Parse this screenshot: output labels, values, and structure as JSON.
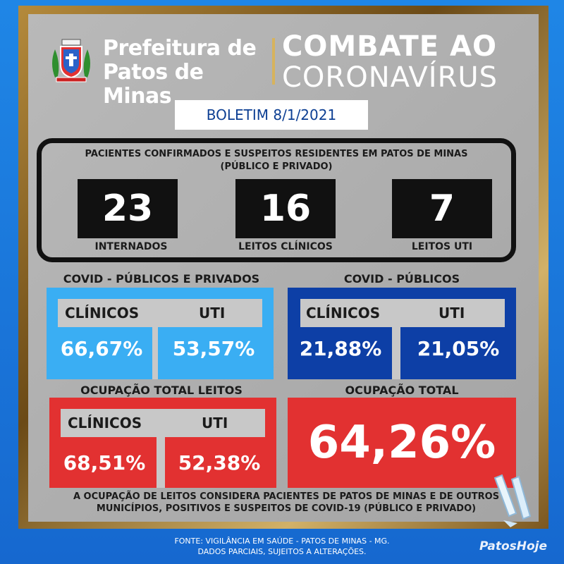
{
  "header": {
    "prefeitura_line1": "Prefeitura de",
    "prefeitura_line2": "Patos de Minas",
    "title_line1": "COMBATE AO",
    "title_line2": "CORONAVÍRUS",
    "crest_icon": "municipal-crest-icon"
  },
  "boletim": "BOLETIM 8/1/2021",
  "patients": {
    "title_line1": "PACIENTES CONFIRMADOS E SUSPEITOS RESIDENTES EM PATOS DE MINAS",
    "title_line2": "(PÚBLICO E PRIVADO)",
    "items": [
      {
        "value": "23",
        "label": "INTERNADOS"
      },
      {
        "value": "16",
        "label": "LEITOS CLÍNICOS"
      },
      {
        "value": "7",
        "label": "LEITOS UTI"
      }
    ]
  },
  "covid_public_private": {
    "title": "COVID - PÚBLICOS E PRIVADOS",
    "clinicos_label": "CLÍNICOS",
    "uti_label": "UTI",
    "clinicos_value": "66,67%",
    "uti_value": "53,57%",
    "color": "#3aaef3"
  },
  "covid_public": {
    "title": "COVID - PÚBLICOS",
    "clinicos_label": "CLÍNICOS",
    "uti_label": "UTI",
    "clinicos_value": "21,88%",
    "uti_value": "21,05%",
    "color": "#0d3fa6"
  },
  "total_beds": {
    "title": "OCUPAÇÃO TOTAL LEITOS",
    "clinicos_label": "CLÍNICOS",
    "uti_label": "UTI",
    "clinicos_value": "68,51%",
    "uti_value": "52,38%",
    "color": "#e23131"
  },
  "total": {
    "title": "OCUPAÇÃO TOTAL",
    "value": "64,26%",
    "color": "#e23131"
  },
  "note": {
    "line1": "A OCUPAÇÃO DE LEITOS CONSIDERA PACIENTES DE PATOS DE MINAS E DE OUTROS",
    "line2": "MUNICÍPIOS, POSITIVOS E SUSPEITOS DE COVID-19 (PÚBLICO E PRIVADO)"
  },
  "footer": {
    "line1": "FONTE: VIGILÂNCIA EM SAÚDE - PATOS DE MINAS - MG.",
    "line2": "DADOS PARCIAIS, SUJEITOS A ALTERAÇÕES."
  },
  "brand": "PatosHoje",
  "colors": {
    "background": "#1f86e6",
    "gold": "#b48a3c",
    "panel": "#aaaaaa"
  }
}
